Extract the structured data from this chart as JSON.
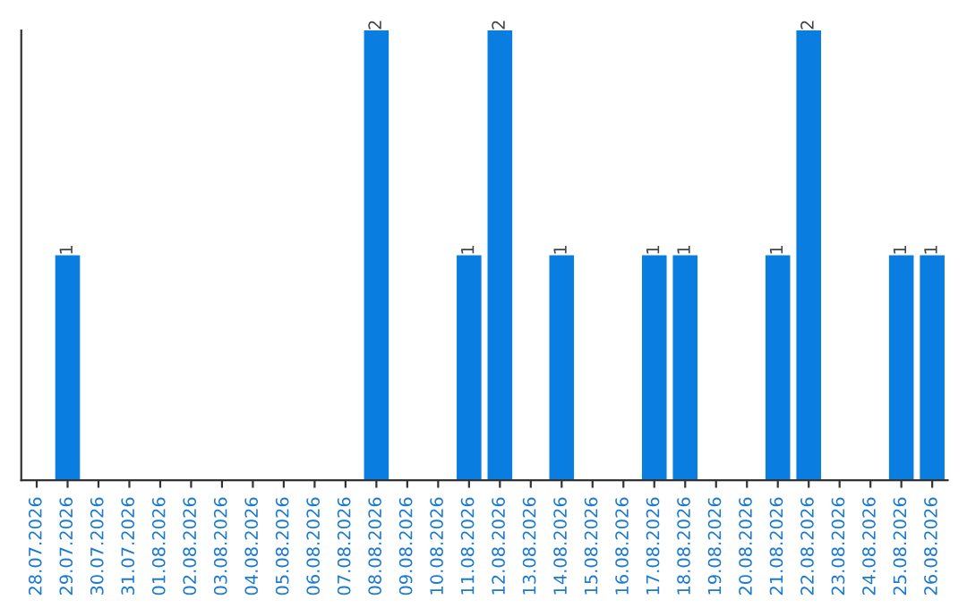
{
  "chart_data": {
    "type": "bar",
    "categories": [
      "28.07.2026",
      "29.07.2026",
      "30.07.2026",
      "31.07.2026",
      "01.08.2026",
      "02.08.2026",
      "03.08.2026",
      "04.08.2026",
      "05.08.2026",
      "06.08.2026",
      "07.08.2026",
      "08.08.2026",
      "09.08.2026",
      "10.08.2026",
      "11.08.2026",
      "12.08.2026",
      "13.08.2026",
      "14.08.2026",
      "15.08.2026",
      "16.08.2026",
      "17.08.2026",
      "18.08.2026",
      "19.08.2026",
      "20.08.2026",
      "21.08.2026",
      "22.08.2026",
      "23.08.2026",
      "24.08.2026",
      "25.08.2026",
      "26.08.2026"
    ],
    "values": [
      0,
      1,
      0,
      0,
      0,
      0,
      0,
      0,
      0,
      0,
      0,
      2,
      0,
      0,
      1,
      2,
      0,
      1,
      0,
      0,
      1,
      1,
      0,
      0,
      1,
      2,
      0,
      0,
      1,
      1
    ],
    "value_labels": [
      null,
      "1",
      null,
      null,
      null,
      null,
      null,
      null,
      null,
      null,
      null,
      "2",
      null,
      null,
      "1",
      "2",
      null,
      "1",
      null,
      null,
      "1",
      "1",
      null,
      null,
      "1",
      "2",
      null,
      null,
      "1",
      "1"
    ],
    "color": "#0a7de0",
    "tick_labels": "x",
    "grid": false,
    "legend": false
  }
}
